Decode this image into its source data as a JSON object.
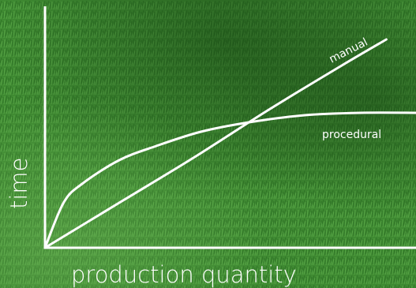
{
  "chart_data": {
    "type": "line",
    "title": "",
    "xlabel": "production quantity",
    "ylabel": "time",
    "xlim": [
      0,
      100
    ],
    "ylim": [
      0,
      100
    ],
    "grid": false,
    "legend": "inline labels on curves",
    "colors": {
      "background": "#3f8a32",
      "grass_dark": "#2a6a22",
      "grass_light": "#5aa84a",
      "lines": "#ffffff"
    },
    "series": [
      {
        "name": "manual",
        "x": [
          0,
          20,
          40,
          60,
          80,
          92
        ],
        "y": [
          0,
          19,
          38,
          58,
          77,
          88
        ]
      },
      {
        "name": "procedural",
        "x": [
          0,
          5,
          10,
          20,
          30,
          42,
          55,
          70,
          85,
          100
        ],
        "y": [
          0,
          19,
          27,
          37,
          43,
          49,
          53,
          56,
          57,
          57
        ]
      }
    ]
  }
}
